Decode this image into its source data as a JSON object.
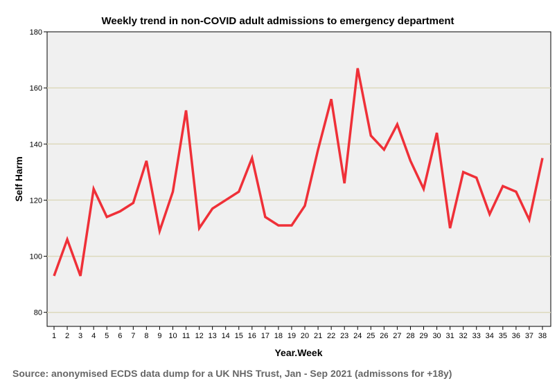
{
  "chart_data": {
    "type": "line",
    "title": "Weekly trend in non-COVID adult admissions to emergency department",
    "xlabel": "Year.Week",
    "ylabel": "Self Harm",
    "ylim": [
      75,
      180
    ],
    "yticks": [
      80,
      100,
      120,
      140,
      160,
      180
    ],
    "grid": true,
    "x": [
      1,
      2,
      3,
      4,
      5,
      6,
      7,
      8,
      9,
      10,
      11,
      12,
      13,
      14,
      15,
      16,
      17,
      18,
      19,
      20,
      21,
      22,
      23,
      24,
      25,
      26,
      27,
      28,
      29,
      30,
      31,
      32,
      33,
      34,
      35,
      36,
      37,
      38
    ],
    "series": [
      {
        "name": "Self Harm",
        "color": "#ef3038",
        "values": [
          93,
          106,
          93,
          124,
          114,
          116,
          119,
          134,
          109,
          123,
          152,
          110,
          117,
          120,
          123,
          135,
          114,
          111,
          111,
          118,
          138,
          156,
          126,
          167,
          143,
          138,
          147,
          134,
          124,
          144,
          110,
          130,
          128,
          115,
          125,
          123,
          113,
          135
        ]
      }
    ]
  },
  "source": "Source: anonymised ECDS data dump for a UK NHS Trust, Jan - Sep 2021 (admissons for +18y)"
}
